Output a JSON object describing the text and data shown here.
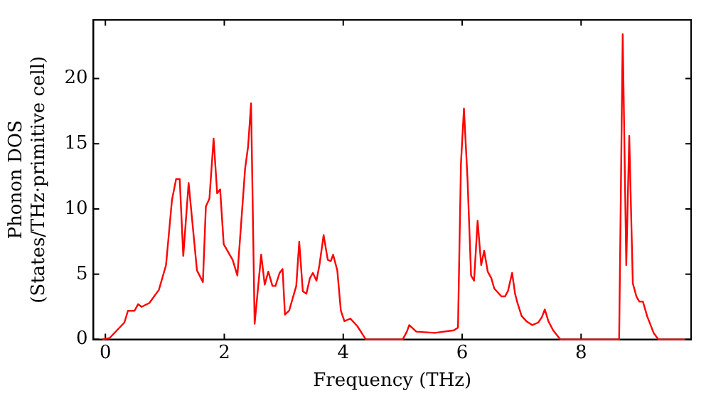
{
  "chart_data": {
    "type": "line",
    "xlabel": "Frequency (THz)",
    "ylabel": "Phonon DOS\n(States/THz·primitive cell)",
    "xlim": [
      -0.2,
      9.85
    ],
    "ylim": [
      0,
      24.5
    ],
    "xticks": [
      0,
      2,
      4,
      6,
      8
    ],
    "yticks": [
      0,
      5,
      10,
      15,
      20
    ],
    "grid": false,
    "legend": false,
    "marker": "none",
    "line_style": "solid",
    "series": [
      {
        "color": "#ff0000",
        "x": [
          -0.05,
          0.07,
          0.32,
          0.38,
          0.49,
          0.55,
          0.61,
          0.74,
          0.9,
          1.02,
          1.12,
          1.19,
          1.25,
          1.31,
          1.4,
          1.54,
          1.64,
          1.69,
          1.75,
          1.82,
          1.88,
          1.93,
          1.99,
          2.14,
          2.22,
          2.35,
          2.4,
          2.45,
          2.51,
          2.62,
          2.68,
          2.74,
          2.81,
          2.86,
          2.93,
          2.98,
          3.02,
          3.09,
          3.21,
          3.26,
          3.32,
          3.38,
          3.44,
          3.49,
          3.55,
          3.6,
          3.67,
          3.74,
          3.79,
          3.83,
          3.9,
          3.96,
          4.02,
          4.12,
          4.24,
          4.38,
          5.0,
          5.07,
          5.11,
          5.23,
          5.54,
          5.86,
          5.93,
          5.98,
          6.03,
          6.09,
          6.15,
          6.2,
          6.26,
          6.32,
          6.37,
          6.43,
          6.49,
          6.54,
          6.66,
          6.72,
          6.77,
          6.84,
          6.89,
          6.93,
          7.0,
          7.08,
          7.18,
          7.28,
          7.34,
          7.39,
          7.45,
          7.53,
          7.65,
          8.64,
          8.7,
          8.76,
          8.81,
          8.87,
          8.93,
          8.98,
          9.04,
          9.11,
          9.22,
          9.3,
          9.75
        ],
        "values": [
          0,
          0.1,
          1.3,
          2.2,
          2.2,
          2.7,
          2.5,
          2.8,
          3.8,
          5.7,
          10.7,
          12.3,
          12.3,
          6.4,
          12,
          5.3,
          4.4,
          10.2,
          10.8,
          15.4,
          11.2,
          11.5,
          7.3,
          6.1,
          4.9,
          13.1,
          14.8,
          18.1,
          1.2,
          6.5,
          4.2,
          5.2,
          4.1,
          4.1,
          5.1,
          5.4,
          1.9,
          2.2,
          4.1,
          7.5,
          3.7,
          3.5,
          4.7,
          5.1,
          4.5,
          5.7,
          8,
          6.1,
          6,
          6.5,
          5.3,
          2.2,
          1.4,
          1.6,
          1.0,
          0,
          0,
          0.6,
          1.1,
          0.6,
          0.5,
          0.7,
          0.9,
          13.5,
          17.7,
          12.3,
          4.9,
          4.5,
          9.1,
          5.7,
          6.8,
          5.2,
          4.7,
          3.9,
          3.3,
          3.3,
          3.7,
          5.1,
          3.5,
          2.8,
          1.8,
          1.4,
          1.1,
          1.3,
          1.7,
          2.3,
          1.4,
          0.7,
          0,
          0,
          23.4,
          5.7,
          15.6,
          4.3,
          3.3,
          2.9,
          2.9,
          1.8,
          0.5,
          0,
          0
        ]
      }
    ]
  }
}
